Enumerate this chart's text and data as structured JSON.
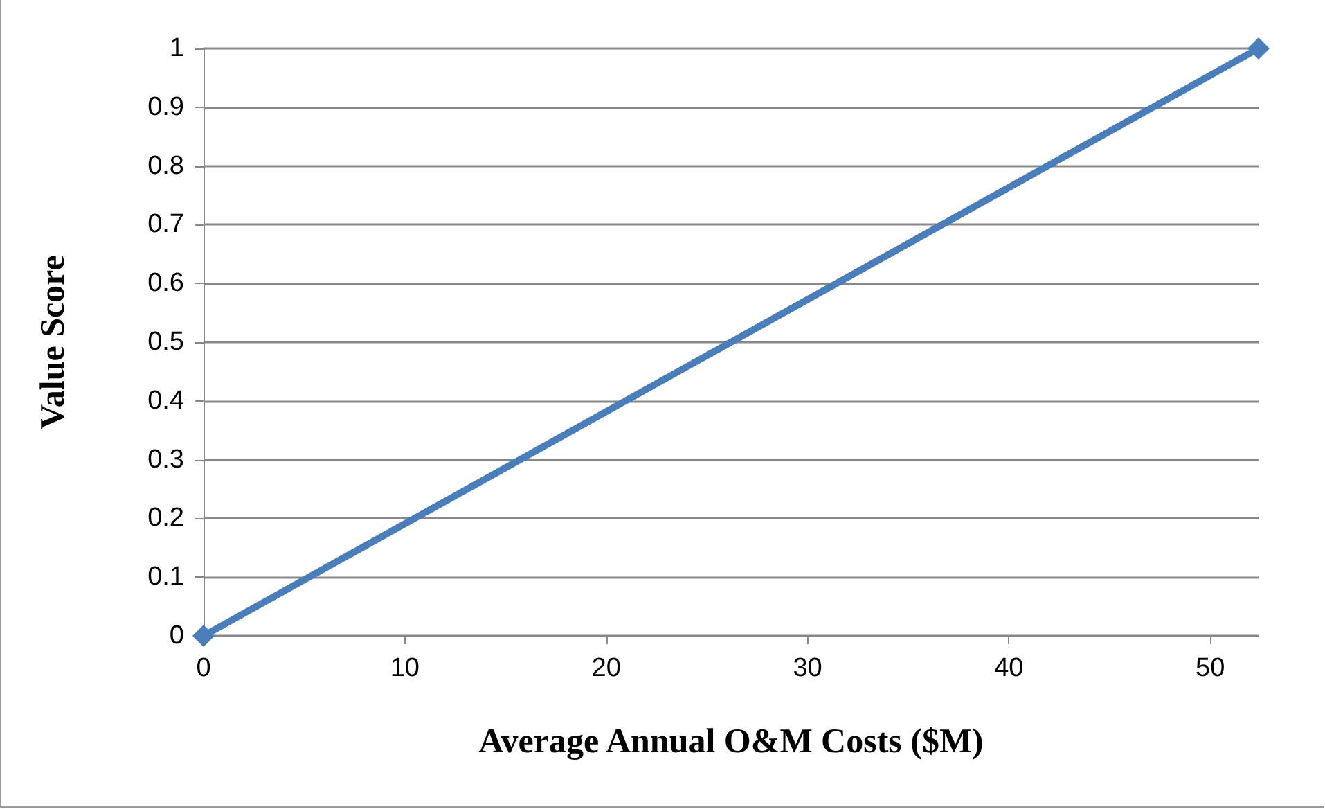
{
  "chart_data": {
    "type": "line",
    "xlabel": "Average Annual O&M Costs ($M)",
    "ylabel": "Value Score",
    "x": [
      0,
      52.4
    ],
    "series": [
      {
        "color": "#4a7ebb",
        "values": [
          0,
          1
        ]
      }
    ],
    "xlim": [
      0,
      52.4
    ],
    "xticks": [
      0,
      10,
      20,
      30,
      40,
      50
    ],
    "ylim": [
      0,
      1
    ],
    "yticks": [
      0,
      0.1,
      0.2,
      0.3,
      0.4,
      0.5,
      0.6,
      0.7,
      0.8,
      0.9,
      1
    ],
    "grid": "y",
    "marker": "diamond",
    "line_style": "solid"
  }
}
